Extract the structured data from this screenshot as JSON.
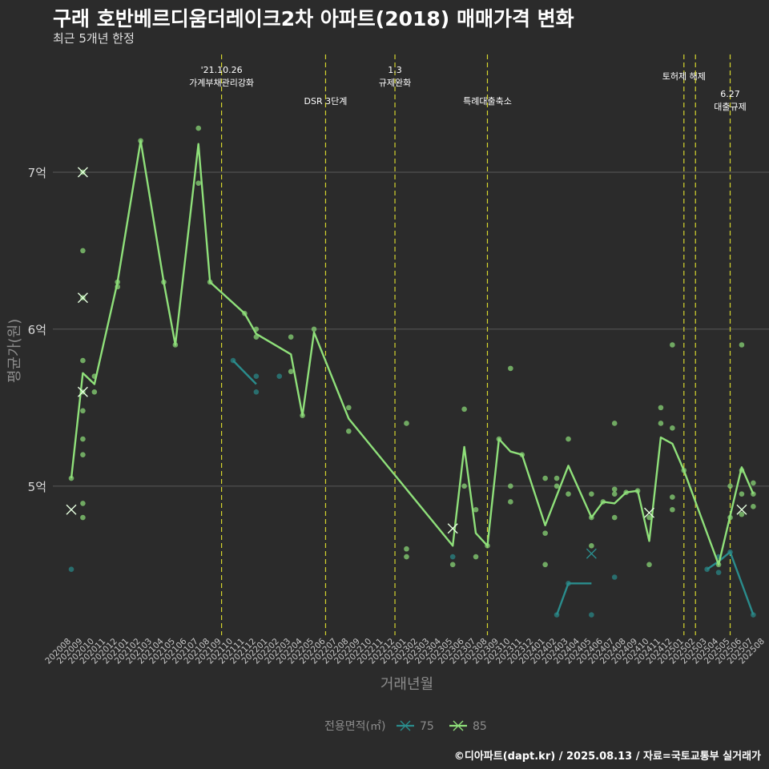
{
  "title": "구래 호반베르디움더레이크2차 아파트(2018) 매매가격 변화",
  "subtitle": "최근 5개년 한정",
  "caption": "©디아파트(dapt.kr) / 2025.08.13 / 자료=국토교통부 실거래가",
  "colors": {
    "background": "#2b2b2b",
    "grid": "#5a5a5a",
    "vline": "#d6d62e",
    "series_75": "#2a8c8c",
    "series_85": "#8fe07a"
  },
  "chart_data": {
    "type": "line",
    "xlabel": "거래년월",
    "ylabel": "평균가(원)",
    "x_categories": [
      "202008",
      "202009",
      "202010",
      "202011",
      "202012",
      "202101",
      "202102",
      "202103",
      "202104",
      "202105",
      "202106",
      "202107",
      "202108",
      "202109",
      "202110",
      "202111",
      "202112",
      "202201",
      "202202",
      "202203",
      "202204",
      "202205",
      "202206",
      "202207",
      "202208",
      "202209",
      "202210",
      "202211",
      "202212",
      "202301",
      "202302",
      "202303",
      "202304",
      "202305",
      "202306",
      "202307",
      "202308",
      "202309",
      "202310",
      "202311",
      "202312",
      "202401",
      "202402",
      "202403",
      "202404",
      "202405",
      "202406",
      "202407",
      "202408",
      "202409",
      "202410",
      "202411",
      "202412",
      "202501",
      "202502",
      "202503",
      "202504",
      "202505",
      "202506",
      "202507",
      "202508"
    ],
    "y_ticks": [
      {
        "value": 5.0,
        "label": "5억"
      },
      {
        "value": 6.0,
        "label": "6억"
      },
      {
        "value": 7.0,
        "label": "7억"
      }
    ],
    "ylim": [
      4.05,
      7.75
    ],
    "legend": {
      "title": "전용면적(㎡)",
      "position": "bottom",
      "entries": [
        "75",
        "85"
      ]
    },
    "events": [
      {
        "x": 13.0,
        "label": "'21.10.26\n가계부채관리강화",
        "row": 0
      },
      {
        "x": 22.0,
        "label": "DSR 3단계",
        "row": 2
      },
      {
        "x": 28.0,
        "label": "1.3\n규제완화",
        "row": 0
      },
      {
        "x": 36.0,
        "label": "특례대출축소",
        "row": 2
      },
      {
        "x": 53.0,
        "label": "토허제 해제",
        "row": 1
      },
      {
        "x": 54.0,
        "label": "",
        "row": 1
      },
      {
        "x": 57.0,
        "label": "6.27\n대출규제",
        "row": 3
      }
    ],
    "series": [
      {
        "name": "75",
        "color": "#2a8c8c",
        "segments": [
          [
            [
              14,
              5.8
            ],
            [
              16,
              5.65
            ]
          ],
          [
            [
              42,
              4.18
            ],
            [
              43,
              4.38
            ],
            [
              45,
              4.38
            ]
          ],
          [
            [
              55,
              4.47
            ],
            [
              56,
              4.52
            ],
            [
              57,
              4.58
            ],
            [
              59,
              4.18
            ]
          ]
        ],
        "points": [
          [
            0,
            4.47
          ],
          [
            14,
            5.8
          ],
          [
            16,
            5.7
          ],
          [
            16,
            5.6
          ],
          [
            18,
            5.7
          ],
          [
            33,
            4.55
          ],
          [
            42,
            4.18
          ],
          [
            43,
            4.38
          ],
          [
            45,
            4.18
          ],
          [
            47,
            4.42
          ],
          [
            55,
            4.47
          ],
          [
            56,
            4.55
          ],
          [
            56,
            4.45
          ],
          [
            57,
            4.58
          ],
          [
            59,
            4.18
          ]
        ],
        "crosses": [
          [
            45,
            4.57
          ]
        ]
      },
      {
        "name": "85",
        "color": "#8fe07a",
        "segments": [
          [
            [
              0,
              5.05
            ],
            [
              1,
              5.72
            ],
            [
              2,
              5.65
            ],
            [
              4,
              6.3
            ],
            [
              6,
              7.2
            ],
            [
              8,
              6.3
            ],
            [
              9,
              5.9
            ],
            [
              11,
              7.18
            ],
            [
              12,
              6.3
            ],
            [
              15,
              6.1
            ],
            [
              16,
              5.97
            ],
            [
              19,
              5.84
            ],
            [
              20,
              5.45
            ],
            [
              21,
              5.98
            ],
            [
              24,
              5.43
            ],
            [
              33,
              4.62
            ],
            [
              34,
              5.25
            ],
            [
              35,
              4.7
            ],
            [
              36,
              4.62
            ],
            [
              37,
              5.3
            ],
            [
              38,
              5.22
            ],
            [
              39,
              5.2
            ],
            [
              41,
              4.75
            ],
            [
              43,
              5.13
            ],
            [
              45,
              4.8
            ],
            [
              46,
              4.9
            ],
            [
              47,
              4.89
            ],
            [
              48,
              4.96
            ],
            [
              49,
              4.97
            ],
            [
              50,
              4.65
            ],
            [
              51,
              5.31
            ],
            [
              52,
              5.27
            ],
            [
              53,
              5.1
            ],
            [
              56,
              4.5
            ],
            [
              58,
              5.12
            ],
            [
              59,
              4.95
            ]
          ]
        ],
        "points": [
          [
            0,
            5.05
          ],
          [
            1,
            7.0
          ],
          [
            1,
            6.5
          ],
          [
            1,
            6.2
          ],
          [
            1,
            5.8
          ],
          [
            1,
            5.6
          ],
          [
            1,
            5.48
          ],
          [
            1,
            5.3
          ],
          [
            1,
            5.2
          ],
          [
            1,
            4.89
          ],
          [
            1,
            4.8
          ],
          [
            2,
            5.7
          ],
          [
            2,
            5.6
          ],
          [
            4,
            6.3
          ],
          [
            4,
            6.27
          ],
          [
            6,
            7.2
          ],
          [
            8,
            6.3
          ],
          [
            9,
            5.9
          ],
          [
            11,
            7.28
          ],
          [
            11,
            6.93
          ],
          [
            12,
            6.3
          ],
          [
            15,
            6.1
          ],
          [
            16,
            6.0
          ],
          [
            16,
            5.95
          ],
          [
            19,
            5.95
          ],
          [
            19,
            5.73
          ],
          [
            20,
            5.45
          ],
          [
            21,
            6.0
          ],
          [
            24,
            5.5
          ],
          [
            24,
            5.35
          ],
          [
            29,
            5.4
          ],
          [
            29,
            4.6
          ],
          [
            29,
            4.55
          ],
          [
            33,
            4.5
          ],
          [
            34,
            5.49
          ],
          [
            34,
            5.0
          ],
          [
            35,
            4.85
          ],
          [
            35,
            4.55
          ],
          [
            36,
            4.62
          ],
          [
            37,
            5.3
          ],
          [
            38,
            5.75
          ],
          [
            38,
            5.0
          ],
          [
            38,
            4.9
          ],
          [
            39,
            5.2
          ],
          [
            41,
            5.05
          ],
          [
            41,
            4.7
          ],
          [
            41,
            4.5
          ],
          [
            42,
            5.05
          ],
          [
            42,
            5.0
          ],
          [
            43,
            5.3
          ],
          [
            43,
            4.95
          ],
          [
            45,
            4.95
          ],
          [
            45,
            4.8
          ],
          [
            45,
            4.62
          ],
          [
            46,
            4.9
          ],
          [
            47,
            5.4
          ],
          [
            47,
            4.98
          ],
          [
            47,
            4.95
          ],
          [
            47,
            4.8
          ],
          [
            48,
            4.96
          ],
          [
            49,
            4.97
          ],
          [
            50,
            4.8
          ],
          [
            50,
            4.5
          ],
          [
            51,
            5.5
          ],
          [
            51,
            5.4
          ],
          [
            52,
            5.9
          ],
          [
            52,
            5.37
          ],
          [
            52,
            4.93
          ],
          [
            52,
            4.85
          ],
          [
            53,
            5.1
          ],
          [
            56,
            4.5
          ],
          [
            57,
            5.0
          ],
          [
            57,
            4.8
          ],
          [
            58,
            5.9
          ],
          [
            58,
            5.1
          ],
          [
            58,
            4.95
          ],
          [
            58,
            4.82
          ],
          [
            59,
            5.02
          ],
          [
            59,
            4.95
          ],
          [
            59,
            4.87
          ]
        ],
        "crosses": [
          [
            0,
            4.85
          ],
          [
            1,
            7.0
          ],
          [
            1,
            6.2
          ],
          [
            1,
            5.6
          ],
          [
            33,
            4.73
          ],
          [
            50,
            4.83
          ],
          [
            58,
            4.85
          ]
        ]
      }
    ]
  }
}
